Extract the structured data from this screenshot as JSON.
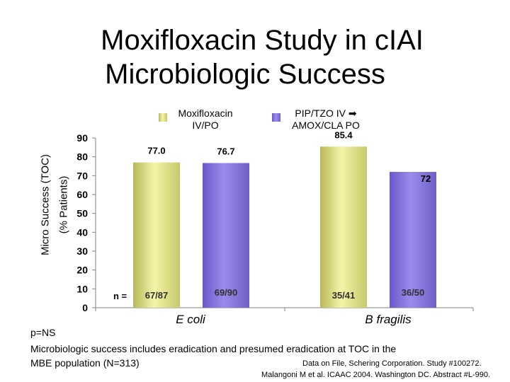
{
  "title_line1": "Moxifloxacin Study in cIAI",
  "title_line2": "Microbiologic Success",
  "chart_data": {
    "type": "bar",
    "ylabel_line1": "Micro Success (TOC)",
    "ylabel_line2": "(% Patients)",
    "ylim": [
      0,
      90
    ],
    "yticks": [
      0,
      10,
      20,
      30,
      40,
      50,
      60,
      70,
      80,
      90
    ],
    "categories": [
      "E coli",
      "B fragilis"
    ],
    "series": [
      {
        "name": "Moxifloxacin IV/PO",
        "name_line1": "Moxifloxacin",
        "name_line2": "IV/PO",
        "color": "#e8e880",
        "values": [
          77.0,
          85.4
        ],
        "labels": [
          "77.0",
          "85.4"
        ],
        "n": [
          "67/87",
          "35/41"
        ]
      },
      {
        "name": "PIP/TZO IV ➡ AMOX/CLA PO",
        "name_line1": "PIP/TZO IV ➡",
        "name_line2": "AMOX/CLA PO",
        "color": "#8a78e0",
        "values": [
          76.7,
          72
        ],
        "labels": [
          "76.7",
          "72"
        ],
        "n": [
          "69/90",
          "36/50"
        ]
      }
    ],
    "n_label": "n ="
  },
  "footer": {
    "line1": "p=NS",
    "line2": "Microbiologic success includes eradication and presumed eradication at TOC in the",
    "line3": "MBE population (N=313)"
  },
  "source": {
    "line1": "Data on File, Schering Corporation. Study #100272.",
    "line2": "Malangoni M et al. ICAAC 2004. Washington DC. Abstract #L-990."
  }
}
